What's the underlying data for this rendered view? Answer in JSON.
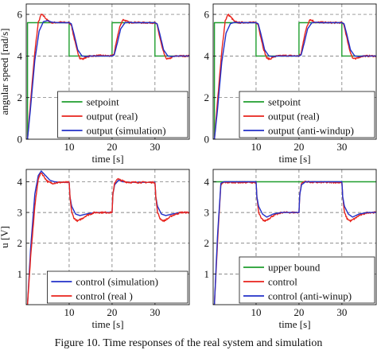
{
  "caption": "Figure 10. Time responses of the real system and simulation",
  "colors": {
    "green": "#1f9e2e",
    "red": "#e8231c",
    "blue": "#2230c8",
    "grid": "#666666"
  },
  "chart_data": [
    {
      "type": "line",
      "panel": "top-left",
      "xlabel": "time [s]",
      "ylabel": "angular speed [rad/s]",
      "xlim": [
        0,
        38
      ],
      "ylim": [
        0,
        6.5
      ],
      "xticks": [
        10,
        20,
        30
      ],
      "yticks": [
        0,
        2,
        4,
        6
      ],
      "grid": true,
      "legend_position": "bottom-right",
      "series": [
        {
          "name": "setpoint",
          "color": "green",
          "kind": "setpoint",
          "x": [
            0,
            0.3,
            0.3,
            10,
            10,
            20,
            20,
            30,
            30,
            38
          ],
          "y": [
            0,
            0,
            5.6,
            5.6,
            4.0,
            4.0,
            5.6,
            5.6,
            4.0,
            4.0
          ]
        },
        {
          "name": "output (real)",
          "color": "red",
          "kind": "real",
          "x": [
            0,
            0.3,
            1,
            2,
            2.8,
            3.5,
            4.2,
            5,
            6,
            8,
            10,
            10.5,
            11,
            11.8,
            12.5,
            13.2,
            14,
            15,
            17,
            20,
            20.5,
            21,
            21.8,
            22.5,
            23.2,
            24,
            25,
            27,
            30,
            30.5,
            31,
            31.8,
            32.5,
            33.2,
            34,
            35,
            38
          ],
          "y": [
            0,
            0,
            1.8,
            4.2,
            5.6,
            6.0,
            5.9,
            5.7,
            5.6,
            5.62,
            5.6,
            5.5,
            5.0,
            4.3,
            3.9,
            3.85,
            3.95,
            4.0,
            4.02,
            4.0,
            4.1,
            4.7,
            5.4,
            5.75,
            5.7,
            5.6,
            5.62,
            5.6,
            5.6,
            5.5,
            5.0,
            4.3,
            3.9,
            3.85,
            3.95,
            4.0,
            4.0
          ]
        },
        {
          "name": "output (simulation)",
          "color": "blue",
          "kind": "model",
          "x": [
            0,
            0.3,
            1,
            2,
            3,
            4,
            5,
            6,
            8,
            10,
            10.5,
            11.2,
            12,
            13,
            14,
            15,
            20,
            20.5,
            21.2,
            22,
            23,
            24,
            25,
            30,
            30.5,
            31.2,
            32,
            33,
            34,
            35,
            38
          ],
          "y": [
            0,
            0,
            1.5,
            3.8,
            5.2,
            5.65,
            5.7,
            5.62,
            5.6,
            5.6,
            5.55,
            5.0,
            4.3,
            4.0,
            3.97,
            4.0,
            4.0,
            4.05,
            4.6,
            5.3,
            5.6,
            5.62,
            5.6,
            5.6,
            5.55,
            5.0,
            4.3,
            4.0,
            3.97,
            4.0,
            4.0
          ]
        }
      ]
    },
    {
      "type": "line",
      "panel": "top-right",
      "xlabel": "time [s]",
      "ylabel": "",
      "xlim": [
        0,
        38
      ],
      "ylim": [
        0,
        6.5
      ],
      "xticks": [
        10,
        20,
        30
      ],
      "yticks": [
        0,
        2,
        4,
        6
      ],
      "grid": true,
      "legend_position": "bottom-right",
      "series": [
        {
          "name": "setpoint",
          "color": "green",
          "kind": "setpoint",
          "x": [
            0,
            0.3,
            0.3,
            10,
            10,
            20,
            20,
            30,
            30,
            38
          ],
          "y": [
            0,
            0,
            5.6,
            5.6,
            4.0,
            4.0,
            5.6,
            5.6,
            4.0,
            4.0
          ]
        },
        {
          "name": "output (real)",
          "color": "red",
          "kind": "real",
          "x": [
            0,
            0.3,
            1,
            2,
            2.8,
            3.5,
            4.2,
            5,
            6,
            8,
            10,
            10.5,
            11,
            11.8,
            12.5,
            13.2,
            14,
            15,
            17,
            20,
            20.5,
            21,
            21.8,
            22.5,
            23.2,
            24,
            25,
            27,
            30,
            30.5,
            31,
            31.8,
            32.5,
            33.2,
            34,
            35,
            38
          ],
          "y": [
            0,
            0,
            1.8,
            4.2,
            5.7,
            6.0,
            5.85,
            5.65,
            5.6,
            5.62,
            5.6,
            5.5,
            5.0,
            4.3,
            3.9,
            3.85,
            3.95,
            4.0,
            4.02,
            4.0,
            4.1,
            4.7,
            5.4,
            5.75,
            5.7,
            5.6,
            5.62,
            5.6,
            5.6,
            5.5,
            5.0,
            4.3,
            3.9,
            3.85,
            3.95,
            4.0,
            4.0
          ]
        },
        {
          "name": "output (anti-windup)",
          "color": "blue",
          "kind": "model",
          "x": [
            0,
            0.3,
            1,
            2,
            3,
            4,
            5,
            6,
            8,
            10,
            10.5,
            11.2,
            12,
            13,
            14,
            15,
            20,
            20.5,
            21.2,
            22,
            23,
            24,
            25,
            30,
            30.5,
            31.2,
            32,
            33,
            34,
            35,
            38
          ],
          "y": [
            0,
            0,
            1.4,
            3.7,
            5.1,
            5.55,
            5.62,
            5.6,
            5.6,
            5.6,
            5.55,
            5.0,
            4.3,
            4.0,
            3.97,
            4.0,
            4.0,
            4.05,
            4.6,
            5.3,
            5.6,
            5.62,
            5.6,
            5.6,
            5.55,
            5.0,
            4.3,
            4.0,
            3.97,
            4.0,
            4.0
          ]
        }
      ]
    },
    {
      "type": "line",
      "panel": "bottom-left",
      "xlabel": "time [s]",
      "ylabel": "u [V]",
      "xlim": [
        0,
        38
      ],
      "ylim": [
        0,
        4.4
      ],
      "xticks": [
        10,
        20,
        30
      ],
      "yticks": [
        1,
        2,
        3,
        4
      ],
      "grid": true,
      "legend_position": "bottom-right",
      "series": [
        {
          "name": "control  (simulation)",
          "color": "blue",
          "kind": "model",
          "x": [
            0,
            0.3,
            1,
            2,
            2.8,
            3.5,
            4.5,
            5.5,
            6.5,
            8,
            10,
            10.2,
            10.6,
            11.5,
            12.5,
            14,
            16,
            20,
            20.2,
            20.6,
            21.5,
            22.5,
            24,
            26,
            30,
            30.2,
            30.6,
            31.5,
            32.5,
            34,
            36,
            38
          ],
          "y": [
            0,
            0,
            1.8,
            3.6,
            4.2,
            4.35,
            4.2,
            4.05,
            4.0,
            3.98,
            3.98,
            3.5,
            3.2,
            2.95,
            2.9,
            2.95,
            3.0,
            3.0,
            3.6,
            3.9,
            4.05,
            4.0,
            3.98,
            3.98,
            3.98,
            3.5,
            3.2,
            2.95,
            2.9,
            2.95,
            3.0,
            3.0
          ]
        },
        {
          "name": "control  (real )",
          "color": "red",
          "kind": "real",
          "x": [
            0,
            0.3,
            1,
            2,
            2.8,
            3.5,
            4.2,
            5,
            6,
            8,
            10,
            10.2,
            10.6,
            11.2,
            12,
            13,
            14,
            16,
            20,
            20.2,
            20.6,
            21.2,
            22,
            23,
            24,
            26,
            30,
            30.2,
            30.6,
            31.2,
            32,
            33,
            34,
            36,
            38
          ],
          "y": [
            0,
            0,
            1.5,
            3.2,
            4.1,
            4.3,
            4.15,
            4.0,
            3.95,
            3.98,
            3.98,
            3.5,
            3.0,
            2.8,
            2.72,
            2.8,
            2.9,
            3.0,
            3.0,
            3.6,
            3.95,
            4.1,
            4.05,
            4.0,
            3.98,
            3.98,
            3.98,
            3.5,
            3.0,
            2.8,
            2.72,
            2.8,
            2.9,
            3.0,
            3.0
          ]
        }
      ]
    },
    {
      "type": "line",
      "panel": "bottom-right",
      "xlabel": "time [s]",
      "ylabel": "",
      "xlim": [
        0,
        38
      ],
      "ylim": [
        0,
        4.4
      ],
      "xticks": [
        10,
        20,
        30
      ],
      "yticks": [
        1,
        2,
        3,
        4
      ],
      "grid": true,
      "legend_position": "bottom-right",
      "series": [
        {
          "name": "upper bound",
          "color": "green",
          "kind": "setpoint",
          "x": [
            0,
            38
          ],
          "y": [
            4.0,
            4.0
          ]
        },
        {
          "name": "control",
          "color": "red",
          "kind": "real",
          "x": [
            0,
            0.3,
            1,
            1.8,
            2.5,
            10,
            10.2,
            10.6,
            11.2,
            12,
            13,
            14,
            16,
            20,
            20.2,
            20.6,
            21.2,
            22,
            23,
            24,
            26,
            30,
            30.2,
            30.6,
            31.2,
            32,
            33,
            34,
            36,
            38
          ],
          "y": [
            0,
            0,
            2.0,
            3.9,
            3.98,
            3.98,
            3.5,
            3.0,
            2.8,
            2.72,
            2.8,
            2.9,
            3.0,
            3.0,
            3.6,
            3.95,
            4.0,
            4.0,
            3.98,
            3.98,
            3.98,
            3.98,
            3.5,
            3.0,
            2.8,
            2.72,
            2.8,
            2.9,
            3.0,
            3.0
          ]
        },
        {
          "name": "control (anti-winup)",
          "color": "blue",
          "kind": "model",
          "x": [
            0,
            0.3,
            1,
            1.8,
            2.5,
            10,
            10.2,
            10.6,
            11.5,
            12.5,
            14,
            16,
            20,
            20.2,
            20.6,
            21.5,
            22.5,
            24,
            26,
            30,
            30.2,
            30.6,
            31.5,
            32.5,
            34,
            36,
            38
          ],
          "y": [
            0,
            0,
            2.2,
            3.95,
            4.0,
            4.0,
            3.5,
            3.2,
            2.95,
            2.85,
            2.95,
            3.0,
            3.0,
            3.6,
            3.9,
            4.0,
            4.0,
            4.0,
            4.0,
            4.0,
            3.5,
            3.2,
            2.95,
            2.85,
            2.95,
            3.0,
            3.0
          ]
        }
      ]
    }
  ]
}
